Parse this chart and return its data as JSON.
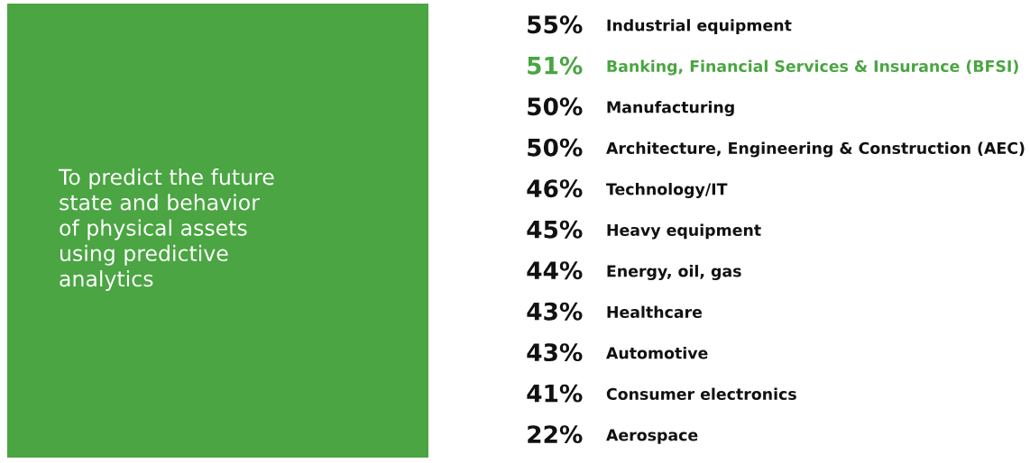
{
  "chart_data": {
    "type": "other",
    "title": "To predict the future\nstate and behavior\nof physical assets\nusing predictive\nanalytics",
    "categories": [
      "Industrial equipment",
      "Banking, Financial Services & Insurance (BFSI)",
      "Manufacturing",
      "Architecture, Engineering & Construction (AEC)",
      "Technology/IT",
      "Heavy equipment",
      "Energy, oil, gas",
      "Healthcare",
      "Automotive",
      "Consumer electronics",
      "Aerospace"
    ],
    "values": [
      55,
      51,
      50,
      50,
      46,
      45,
      44,
      43,
      43,
      41,
      22
    ],
    "value_labels": [
      "55%",
      "51%",
      "50%",
      "50%",
      "46%",
      "45%",
      "44%",
      "43%",
      "43%",
      "41%",
      "22%"
    ],
    "colors": [
      "#111111",
      "#4aa542",
      "#111111",
      "#111111",
      "#111111",
      "#111111",
      "#111111",
      "#111111",
      "#111111",
      "#111111",
      "#111111"
    ]
  }
}
